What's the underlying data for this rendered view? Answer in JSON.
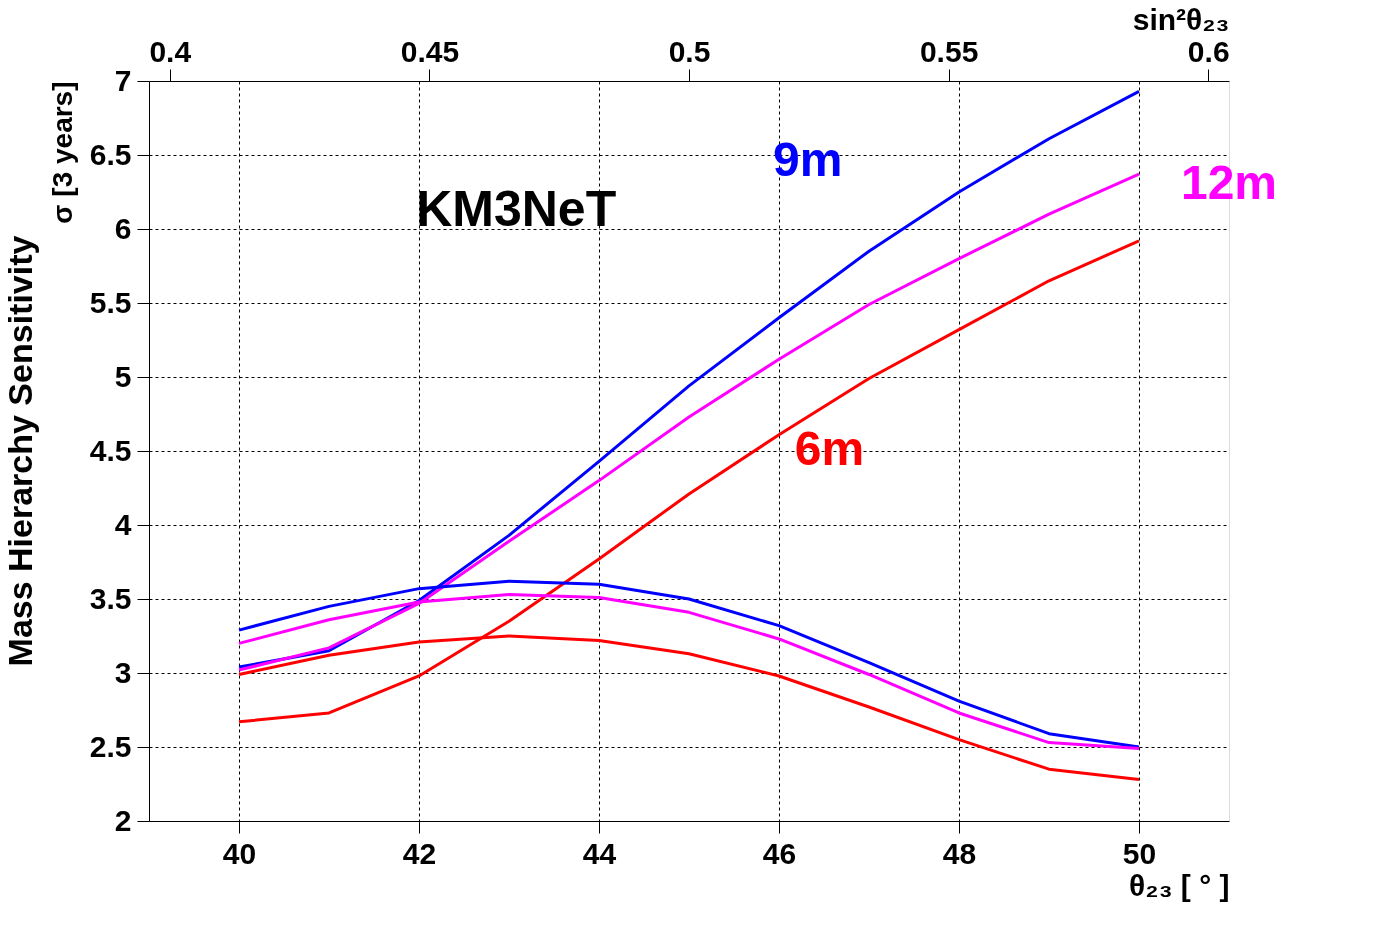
{
  "chart_data": {
    "type": "line",
    "title": "Mass Hierarchy Sensitivity",
    "xlabel": "θ₂₃ [ ° ]",
    "ylabel": "σ [3 years]",
    "x2label": "sin²θ₂₃",
    "x": [
      40,
      41,
      42,
      43,
      44,
      45,
      46,
      47,
      48,
      49,
      50
    ],
    "series": [
      {
        "name": "9m",
        "color": "#0000ff",
        "values": [
          3.04,
          3.15,
          3.49,
          3.93,
          4.43,
          4.94,
          5.4,
          5.85,
          6.25,
          6.61,
          6.93
        ]
      },
      {
        "name": "12m",
        "color": "#ff00ff",
        "values": [
          3.02,
          3.17,
          3.47,
          3.89,
          4.3,
          4.73,
          5.12,
          5.49,
          5.8,
          6.1,
          6.37
        ]
      },
      {
        "name": "6m",
        "color": "#ff0000",
        "values": [
          2.67,
          2.73,
          2.98,
          3.35,
          3.77,
          4.21,
          4.61,
          4.99,
          5.32,
          5.65,
          5.92
        ]
      },
      {
        "color": "#0000ff",
        "values": [
          3.29,
          3.45,
          3.57,
          3.62,
          3.6,
          3.5,
          3.32,
          3.07,
          2.81,
          2.59,
          2.5
        ]
      },
      {
        "color": "#ff00ff",
        "values": [
          3.2,
          3.36,
          3.48,
          3.53,
          3.51,
          3.41,
          3.23,
          2.99,
          2.73,
          2.53,
          2.49
        ]
      },
      {
        "color": "#ff0000",
        "values": [
          2.99,
          3.12,
          3.21,
          3.25,
          3.22,
          3.13,
          2.98,
          2.77,
          2.55,
          2.35,
          2.28
        ]
      }
    ],
    "annotations": [
      "KM3NeT"
    ],
    "xlim": [
      39,
      51
    ],
    "xticks": [
      40,
      42,
      44,
      46,
      48,
      50
    ],
    "ylim": [
      2,
      7
    ],
    "yticks": [
      2,
      2.5,
      3,
      3.5,
      4,
      4.5,
      5,
      5.5,
      6,
      6.5,
      7
    ],
    "x2lim": [
      0.396,
      0.604
    ],
    "x2ticks": [
      0.4,
      0.45,
      0.5,
      0.55,
      0.6
    ],
    "grid": true,
    "line_style": "solid",
    "marker": "none"
  }
}
